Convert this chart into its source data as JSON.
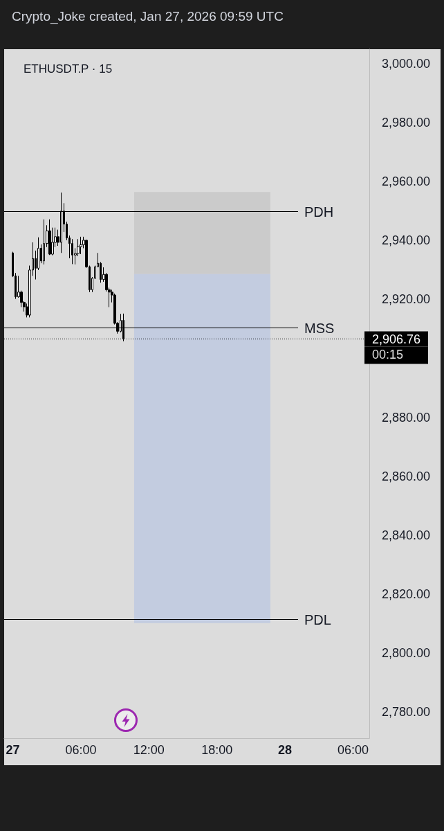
{
  "chart_data": {
    "type": "candlestick",
    "title": "ETHUSDT.P · 15",
    "annotations": [
      "Crypto_Joke created, Jan 27, 2026 09:59 UTC",
      "00:15"
    ],
    "x": [
      "2026-01-27T00:00",
      "2026-01-27T00:15",
      "2026-01-27T00:30",
      "2026-01-27T00:45",
      "2026-01-27T01:00",
      "2026-01-27T01:15",
      "2026-01-27T01:30",
      "2026-01-27T01:45",
      "2026-01-27T02:00",
      "2026-01-27T02:15",
      "2026-01-27T02:30",
      "2026-01-27T02:45",
      "2026-01-27T03:00",
      "2026-01-27T03:15",
      "2026-01-27T03:30",
      "2026-01-27T03:45",
      "2026-01-27T04:00",
      "2026-01-27T04:15",
      "2026-01-27T04:30",
      "2026-01-27T04:45",
      "2026-01-27T05:00",
      "2026-01-27T05:15",
      "2026-01-27T05:30",
      "2026-01-27T05:45",
      "2026-01-27T06:00",
      "2026-01-27T06:15",
      "2026-01-27T06:30",
      "2026-01-27T06:45",
      "2026-01-27T07:00",
      "2026-01-27T07:15",
      "2026-01-27T07:30",
      "2026-01-27T07:45",
      "2026-01-27T08:00",
      "2026-01-27T08:15",
      "2026-01-27T08:30",
      "2026-01-27T08:45",
      "2026-01-27T09:00",
      "2026-01-27T09:15",
      "2026-01-27T09:30",
      "2026-01-27T09:45"
    ],
    "ohlc": [
      [
        2935.8,
        2936.2,
        2927.6,
        2928.0
      ],
      [
        2928.0,
        2929.0,
        2920.2,
        2920.9
      ],
      [
        2920.9,
        2928.0,
        2920.6,
        2922.5
      ],
      [
        2922.5,
        2923.0,
        2917.4,
        2919.0
      ],
      [
        2919.0,
        2919.4,
        2915.9,
        2917.5
      ],
      [
        2917.5,
        2918.6,
        2913.9,
        2914.7
      ],
      [
        2914.7,
        2931.5,
        2913.9,
        2930.0
      ],
      [
        2930.0,
        2939.4,
        2928.0,
        2933.9
      ],
      [
        2933.9,
        2936.6,
        2926.8,
        2930.6
      ],
      [
        2930.6,
        2941.1,
        2930.0,
        2937.4
      ],
      [
        2937.4,
        2938.7,
        2932.3,
        2933.1
      ],
      [
        2933.1,
        2947.2,
        2931.9,
        2939.0
      ],
      [
        2939.0,
        2945.2,
        2937.8,
        2943.3
      ],
      [
        2943.3,
        2947.2,
        2935.1,
        2935.4
      ],
      [
        2935.4,
        2944.4,
        2935.0,
        2939.4
      ],
      [
        2939.4,
        2944.4,
        2937.8,
        2941.3
      ],
      [
        2941.3,
        2943.7,
        2938.2,
        2939.4
      ],
      [
        2939.4,
        2956.3,
        2935.8,
        2950.0
      ],
      [
        2950.0,
        2952.7,
        2942.9,
        2945.6
      ],
      [
        2945.6,
        2946.4,
        2940.1,
        2940.9
      ],
      [
        2940.9,
        2941.7,
        2934.0,
        2939.0
      ],
      [
        2939.0,
        2940.5,
        2932.0,
        2935.1
      ],
      [
        2935.1,
        2937.4,
        2931.9,
        2935.6
      ],
      [
        2935.6,
        2940.5,
        2934.7,
        2937.9
      ],
      [
        2937.9,
        2941.3,
        2935.4,
        2938.6
      ],
      [
        2938.6,
        2941.3,
        2937.4,
        2940.1
      ],
      [
        2940.1,
        2940.3,
        2930.7,
        2931.1
      ],
      [
        2931.1,
        2931.5,
        2922.5,
        2923.3
      ],
      [
        2923.3,
        2927.6,
        2922.5,
        2927.2
      ],
      [
        2927.2,
        2931.5,
        2927.0,
        2931.1
      ],
      [
        2931.1,
        2935.8,
        2931.1,
        2932.3
      ],
      [
        2932.3,
        2932.7,
        2925.7,
        2926.8
      ],
      [
        2926.8,
        2930.9,
        2926.0,
        2928.5
      ],
      [
        2928.5,
        2929.0,
        2922.7,
        2923.3
      ],
      [
        2923.3,
        2924.0,
        2917.4,
        2922.5
      ],
      [
        2922.5,
        2923.3,
        2919.0,
        2921.5
      ],
      [
        2921.5,
        2922.0,
        2911.5,
        2911.9
      ],
      [
        2911.9,
        2912.3,
        2908.4,
        2909.2
      ],
      [
        2909.2,
        2915.1,
        2908.8,
        2912.9
      ],
      [
        2912.9,
        2915.2,
        2905.8,
        2906.76
      ]
    ],
    "xlim": [
      "2026-01-26T23:14",
      "2026-01-28T07:26"
    ],
    "xticks": [
      {
        "value": "2026-01-27T00:00",
        "label": "27"
      },
      {
        "value": "2026-01-27T06:00",
        "label": "06:00"
      },
      {
        "value": "2026-01-27T12:00",
        "label": "12:00"
      },
      {
        "value": "2026-01-27T18:00",
        "label": "18:00"
      },
      {
        "value": "2026-01-28T00:00",
        "label": "28"
      },
      {
        "value": "2026-01-28T06:00",
        "label": "06:00"
      }
    ],
    "ylim": [
      2771,
      3005
    ],
    "yticks": [
      {
        "value": 2780,
        "label": "2,780.00"
      },
      {
        "value": 2800,
        "label": "2,800.00"
      },
      {
        "value": 2820,
        "label": "2,820.00"
      },
      {
        "value": 2840,
        "label": "2,840.00"
      },
      {
        "value": 2860,
        "label": "2,860.00"
      },
      {
        "value": 2880,
        "label": "2,880.00"
      },
      {
        "value": 2920,
        "label": "2,920.00"
      },
      {
        "value": 2940,
        "label": "2,940.00"
      },
      {
        "value": 2960,
        "label": "2,960.00"
      },
      {
        "value": 2980,
        "label": "2,980.00"
      },
      {
        "value": 3000,
        "label": "3,000.00"
      }
    ],
    "ref_lines": [
      {
        "axis": "y",
        "value": 2949.9,
        "label": "PDH",
        "color": "#000000",
        "line_style": "solid"
      },
      {
        "axis": "y",
        "value": 2910.5,
        "label": "MSS",
        "color": "#000000",
        "line_style": "solid"
      },
      {
        "axis": "y",
        "value": 2811.5,
        "label": "PDL",
        "color": "#000000",
        "line_style": "solid"
      },
      {
        "axis": "y",
        "value": 2906.76,
        "label": "2,906.76",
        "color": "#000000",
        "line_style": "dotted"
      }
    ],
    "bands": [
      {
        "axis": "y",
        "from": 2928.6,
        "to": 2956.5,
        "color": "#cbcbcb"
      },
      {
        "axis": "y",
        "from": 2810.1,
        "to": 2928.6,
        "color": "#c3cce0"
      }
    ]
  }
}
